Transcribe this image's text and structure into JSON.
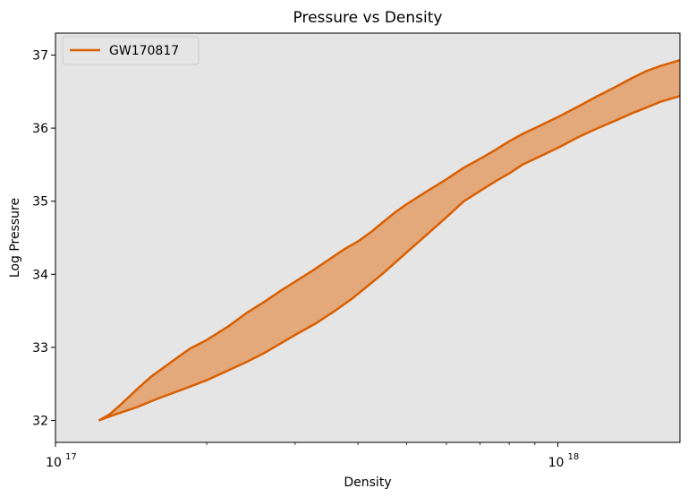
{
  "chart_data": {
    "type": "area",
    "title": "Pressure vs Density",
    "xlabel": "Density",
    "ylabel": "Log Pressure",
    "xscale": "log",
    "xlim": [
      1e+17,
      1.75e+18
    ],
    "ylim": [
      31.7,
      37.3
    ],
    "x_ticks": [
      {
        "value": 1e+17,
        "base": "10",
        "exp": "17"
      },
      {
        "value": 1e+18,
        "base": "10",
        "exp": "18"
      }
    ],
    "y_ticks": [
      32,
      33,
      34,
      35,
      36,
      37
    ],
    "grid": false,
    "legend": {
      "position": "top-left",
      "entries": [
        "GW170817"
      ]
    },
    "colors": {
      "line": "#d95f02",
      "fill": "#e4a97a",
      "background": "#e5e5e5"
    },
    "series": [
      {
        "name": "GW170817",
        "upper": [
          [
            1.22e+17,
            32.0
          ],
          [
            1.28e+17,
            32.08
          ],
          [
            1.35e+17,
            32.22
          ],
          [
            1.45e+17,
            32.42
          ],
          [
            1.55e+17,
            32.6
          ],
          [
            1.7e+17,
            32.8
          ],
          [
            1.85e+17,
            32.98
          ],
          [
            2e+17,
            33.1
          ],
          [
            2.2e+17,
            33.28
          ],
          [
            2.4e+17,
            33.47
          ],
          [
            2.6e+17,
            33.62
          ],
          [
            2.8e+17,
            33.77
          ],
          [
            3e+17,
            33.9
          ],
          [
            3.25e+17,
            34.05
          ],
          [
            3.5e+17,
            34.2
          ],
          [
            3.75e+17,
            34.34
          ],
          [
            4e+17,
            34.45
          ],
          [
            4.25e+17,
            34.58
          ],
          [
            4.5e+17,
            34.72
          ],
          [
            4.75e+17,
            34.85
          ],
          [
            5e+17,
            34.96
          ],
          [
            5.5e+17,
            35.14
          ],
          [
            6e+17,
            35.3
          ],
          [
            6.5e+17,
            35.46
          ],
          [
            7e+17,
            35.58
          ],
          [
            7.5e+17,
            35.7
          ],
          [
            8e+17,
            35.82
          ],
          [
            8.5e+17,
            35.92
          ],
          [
            9e+17,
            36.0
          ],
          [
            1e+18,
            36.15
          ],
          [
            1.1e+18,
            36.3
          ],
          [
            1.2e+18,
            36.44
          ],
          [
            1.3e+18,
            36.56
          ],
          [
            1.4e+18,
            36.68
          ],
          [
            1.5e+18,
            36.78
          ],
          [
            1.6e+18,
            36.85
          ],
          [
            1.75e+18,
            36.93
          ]
        ],
        "lower": [
          [
            1.22e+17,
            32.0
          ],
          [
            1.3e+17,
            32.07
          ],
          [
            1.45e+17,
            32.18
          ],
          [
            1.6e+17,
            32.3
          ],
          [
            1.8e+17,
            32.43
          ],
          [
            2e+17,
            32.55
          ],
          [
            2.2e+17,
            32.68
          ],
          [
            2.4e+17,
            32.8
          ],
          [
            2.6e+17,
            32.92
          ],
          [
            2.8e+17,
            33.05
          ],
          [
            3e+17,
            33.17
          ],
          [
            3.3e+17,
            33.33
          ],
          [
            3.6e+17,
            33.5
          ],
          [
            3.9e+17,
            33.67
          ],
          [
            4.2e+17,
            33.85
          ],
          [
            4.5e+17,
            34.02
          ],
          [
            5e+17,
            34.3
          ],
          [
            5.5e+17,
            34.55
          ],
          [
            6e+17,
            34.78
          ],
          [
            6.5e+17,
            35.0
          ],
          [
            7e+17,
            35.14
          ],
          [
            7.5e+17,
            35.27
          ],
          [
            8e+17,
            35.38
          ],
          [
            8.5e+17,
            35.5
          ],
          [
            9e+17,
            35.58
          ],
          [
            1e+18,
            35.73
          ],
          [
            1.1e+18,
            35.88
          ],
          [
            1.2e+18,
            36.0
          ],
          [
            1.3e+18,
            36.1
          ],
          [
            1.4e+18,
            36.2
          ],
          [
            1.5e+18,
            36.28
          ],
          [
            1.6e+18,
            36.36
          ],
          [
            1.75e+18,
            36.44
          ]
        ]
      }
    ]
  }
}
